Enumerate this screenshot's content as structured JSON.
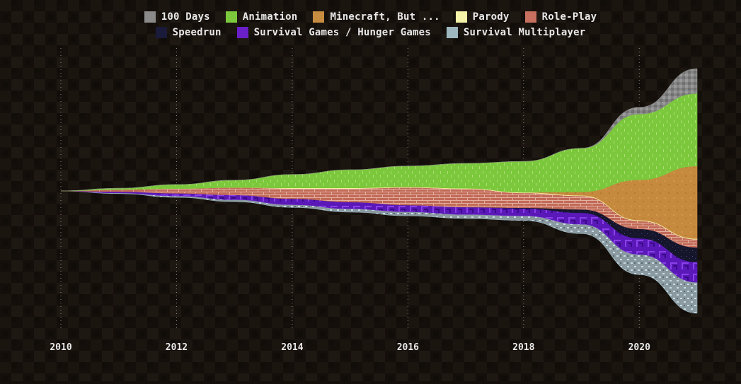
{
  "chart_data": {
    "type": "area",
    "layout": "streamgraph",
    "grid": true,
    "legend_position": "top-center",
    "x": [
      2010,
      2011,
      2012,
      2013,
      2014,
      2015,
      2016,
      2017,
      2018,
      2019,
      2020,
      2021
    ],
    "xticks": [
      "2010",
      "2012",
      "2014",
      "2016",
      "2018",
      "2020"
    ],
    "series": [
      {
        "name": "Survival Multiplayer",
        "color": "#9fb8c0",
        "values": [
          0,
          1,
          2,
          3,
          4,
          5,
          6,
          6,
          7,
          14,
          30,
          46
        ]
      },
      {
        "name": "Survival Games / Hunger Games",
        "color": "#6a1fc8",
        "values": [
          0,
          2,
          4,
          7,
          9,
          10,
          10,
          11,
          11,
          17,
          24,
          30
        ]
      },
      {
        "name": "Speedrun",
        "color": "#1a1a3a",
        "values": [
          0,
          0,
          0,
          0,
          0,
          0,
          0,
          0,
          1,
          5,
          14,
          22
        ]
      },
      {
        "name": "Role-Play",
        "color": "#c87060",
        "values": [
          0,
          3,
          7,
          11,
          15,
          20,
          26,
          27,
          22,
          20,
          12,
          12
        ]
      },
      {
        "name": "Parody",
        "color": "#f5f3a8",
        "values": [
          0,
          0,
          0,
          0,
          1,
          1,
          1,
          1,
          1,
          1,
          1,
          1
        ]
      },
      {
        "name": "Minecraft, But ...",
        "color": "#c88c40",
        "values": [
          0,
          0,
          0,
          0,
          0,
          0,
          0,
          0,
          0,
          5,
          60,
          108
        ]
      },
      {
        "name": "Animation",
        "color": "#7cc83c",
        "values": [
          0,
          2,
          6,
          11,
          20,
          27,
          31,
          37,
          46,
          65,
          98,
          108
        ]
      },
      {
        "name": "100 Days",
        "color": "#8a8a8a",
        "values": [
          0,
          0,
          0,
          0,
          0,
          0,
          0,
          0,
          0,
          0,
          10,
          37
        ]
      }
    ]
  },
  "legend": {
    "row1": [
      "100 Days",
      "Animation",
      "Minecraft, But ...",
      "Parody",
      "Role-Play"
    ],
    "row2": [
      "Speedrun",
      "Survival Games / Hunger Games",
      "Survival Multiplayer"
    ]
  },
  "legend_colors": {
    "100 Days": "#8a8a8a",
    "Animation": "#7cc83c",
    "Minecraft, But ...": "#c88c40",
    "Parody": "#f5f3a8",
    "Role-Play": "#c87060",
    "Speedrun": "#1a1a3a",
    "Survival Games / Hunger Games": "#6a1fc8",
    "Survival Multiplayer": "#9fb8c0"
  }
}
